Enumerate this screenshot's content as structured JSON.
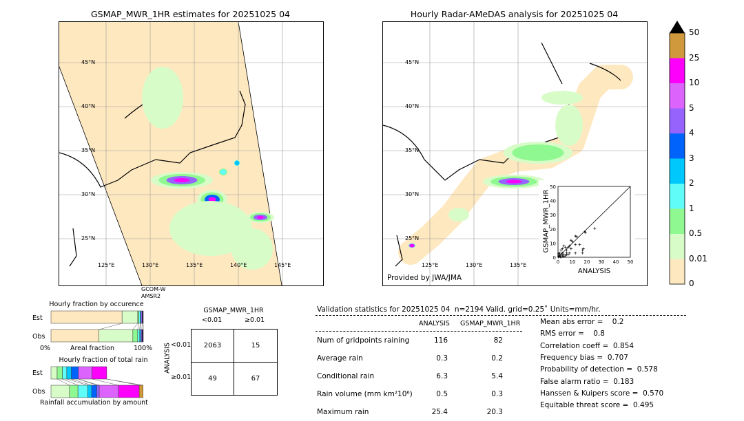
{
  "left_map": {
    "title": "GSMAP_MWR_1HR estimates for 20251025 04",
    "satellite_label": "GCOM-W",
    "sensor_label": "AMSR2"
  },
  "right_map": {
    "title": "Hourly Radar-AMeDAS analysis for 20251025 04",
    "credit": "Provided by JWA/JMA"
  },
  "lat_labels": [
    "45°N",
    "40°N",
    "35°N",
    "30°N",
    "25°N"
  ],
  "lon_labels_left": [
    "125°E",
    "130°E",
    "135°E",
    "140°E",
    "145°E"
  ],
  "lon_labels_right": [
    "125°E",
    "130°E",
    "135°E"
  ],
  "colorbar": {
    "labels": [
      "50",
      "25",
      "10",
      "5",
      "4",
      "3",
      "2",
      "1",
      "0.5",
      "0.01",
      "0"
    ],
    "colors": [
      "#fee8c0",
      "#d8fcc8",
      "#90f890",
      "#60fcf8",
      "#00c8fc",
      "#0064fc",
      "#9664fc",
      "#dc64fc",
      "#fc00fc",
      "#d09a3c"
    ],
    "extend_color": "#000000"
  },
  "occurrence": {
    "title": "Hourly fraction by occurence",
    "xlabel": "Areal fraction",
    "x0": "0%",
    "x1": "100%",
    "est_label": "Est",
    "obs_label": "Obs",
    "est": [
      0.77,
      0.17,
      0.013,
      0.013,
      0.01,
      0.012,
      0.012
    ],
    "obs": [
      0.52,
      0.367,
      0.052,
      0.022,
      0.012,
      0.012,
      0.015
    ]
  },
  "total_rain": {
    "title": "Hourly fraction of total rain",
    "xlabel": "Rainfall accumulation by amount",
    "est_label": "Est",
    "obs_label": "Obs",
    "est": [
      0.067,
      0.057,
      0.047,
      0.05,
      0.075,
      0,
      0.149,
      0.159,
      0
    ],
    "obs": [
      0.2,
      0.092,
      0.107,
      0.042,
      0.055,
      0.027,
      0.209,
      0.224,
      0.042
    ]
  },
  "contingency": {
    "title": "GSMAP_MWR_1HR",
    "col_labels": [
      "<0.01",
      "≥0.01"
    ],
    "row_axis": "ANALYSIS",
    "row_labels": [
      "<0.01",
      "≥0.01"
    ],
    "cells": [
      [
        "2063",
        "15"
      ],
      [
        "49",
        "67"
      ]
    ]
  },
  "chart_data": {
    "type": "scatter",
    "xlabel": "ANALYSIS",
    "ylabel": "GSMAP_MWR_1HR",
    "xlim": [
      0,
      50
    ],
    "ylim": [
      0,
      50
    ],
    "ticks": [
      "0",
      "10",
      "20",
      "30",
      "40",
      "50"
    ],
    "points": [
      [
        25.4,
        20.3
      ],
      [
        18.5,
        18
      ],
      [
        19,
        17.5
      ],
      [
        12,
        15
      ],
      [
        13,
        14.5
      ],
      [
        9,
        12
      ],
      [
        10,
        11
      ],
      [
        15,
        9
      ],
      [
        12,
        9
      ],
      [
        8,
        8
      ],
      [
        7,
        7
      ],
      [
        5,
        7
      ],
      [
        4,
        8
      ],
      [
        3,
        6
      ],
      [
        2,
        5
      ],
      [
        6,
        5
      ],
      [
        9,
        6
      ],
      [
        17.5,
        6
      ],
      [
        17,
        5
      ],
      [
        17,
        3
      ],
      [
        12,
        3
      ],
      [
        8,
        3
      ],
      [
        7,
        2
      ],
      [
        6,
        2
      ],
      [
        6,
        3
      ],
      [
        4,
        2
      ],
      [
        3,
        3
      ],
      [
        2,
        2
      ],
      [
        1,
        1
      ],
      [
        1.5,
        0.5
      ],
      [
        0.5,
        1
      ],
      [
        2,
        0
      ],
      [
        3,
        1
      ],
      [
        1,
        3
      ],
      [
        0.3,
        0.2
      ],
      [
        4,
        0.5
      ],
      [
        5,
        1
      ],
      [
        0.5,
        2.5
      ]
    ]
  },
  "stats": {
    "header": "Validation statistics for 20251025 04  n=2194 Valid. grid=0.25˚ Units=mm/hr.",
    "col_headers": [
      "ANALYSIS",
      "GSMAP_MWR_1HR"
    ],
    "rows": [
      {
        "label": "Num of gridpoints raining",
        "a": "116",
        "g": "82"
      },
      {
        "label": "Average rain",
        "a": "0.3",
        "g": "0.2"
      },
      {
        "label": "Conditional rain",
        "a": "6.3",
        "g": "5.4"
      },
      {
        "label": "Rain volume (mm km²10⁶)",
        "a": "0.5",
        "g": "0.3"
      },
      {
        "label": "Maximum rain",
        "a": "25.4",
        "g": "20.3"
      }
    ],
    "scores": [
      "Mean abs error =    0.2",
      "RMS error =    0.8",
      "Correlation coeff =  0.854",
      "Frequency bias =  0.707",
      "Probability of detection =  0.578",
      "False alarm ratio =  0.183",
      "Hanssen & Kuipers score =  0.570",
      "Equitable threat score =  0.495"
    ]
  }
}
